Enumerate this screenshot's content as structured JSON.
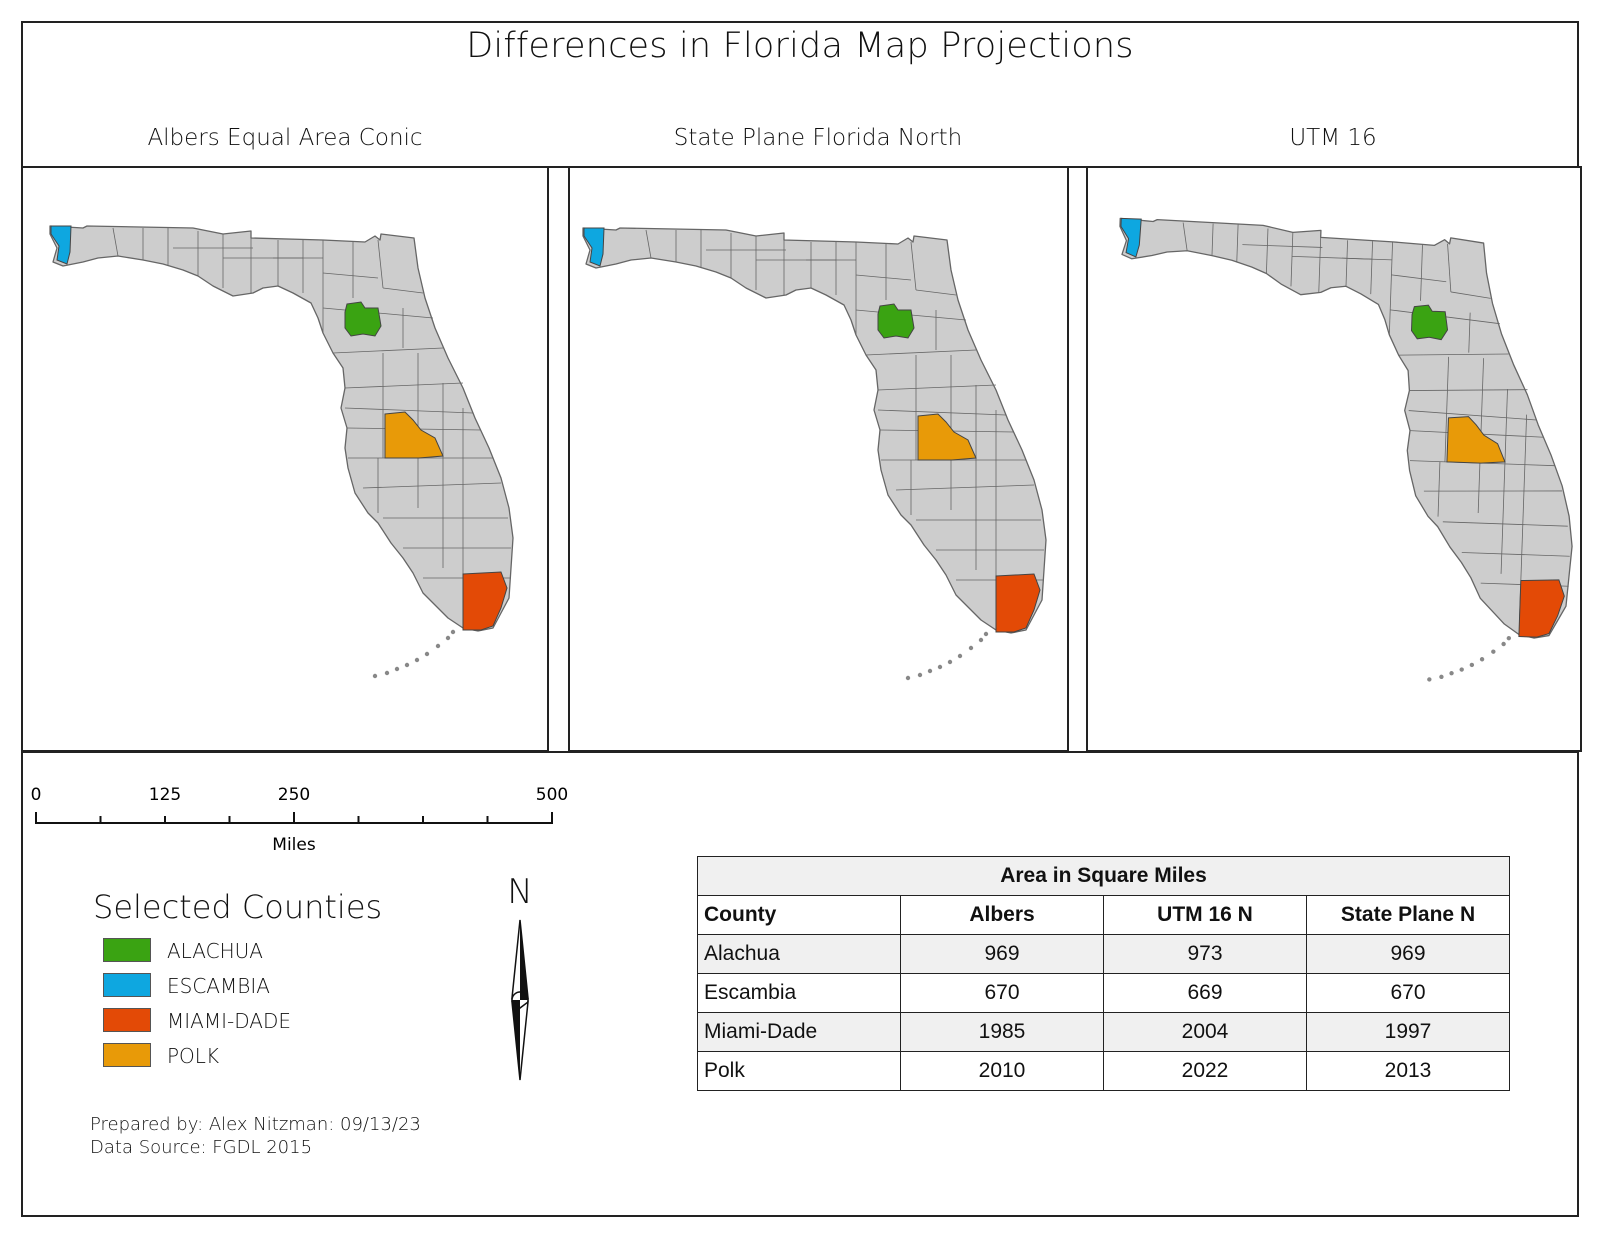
{
  "title": "Differences in Florida Map Projections",
  "maps": [
    {
      "title": "Albers Equal Area Conic"
    },
    {
      "title": "State Plane Florida North"
    },
    {
      "title": "UTM 16"
    }
  ],
  "scale_bar": {
    "labels": [
      "0",
      "125",
      "250",
      "500"
    ],
    "unit": "Miles"
  },
  "legend": {
    "title": "Selected Counties",
    "items": [
      {
        "label": "ALACHUA",
        "color": "#3aa312"
      },
      {
        "label": "ESCAMBIA",
        "color": "#0ea7e0"
      },
      {
        "label": "MIAMI-DADE",
        "color": "#e34a06"
      },
      {
        "label": "POLK",
        "color": "#e89a08"
      }
    ]
  },
  "colors": {
    "county_fill": "#cdcdcd",
    "county_line": "#666666",
    "alachua": "#3aa312",
    "escambia": "#0ea7e0",
    "miami_dade": "#e34a06",
    "polk": "#e89a08"
  },
  "north_arrow": {
    "letter": "N"
  },
  "credits": {
    "prepared": "Prepared by: Alex Nitzman: 09/13/23",
    "source": "Data Source: FGDL 2015"
  },
  "area_table": {
    "caption": "Area in Square Miles",
    "headers": [
      "County",
      "Albers",
      "UTM 16 N",
      "State Plane N"
    ],
    "rows": [
      [
        "Alachua",
        "969",
        "973",
        "969"
      ],
      [
        "Escambia",
        "670",
        "669",
        "670"
      ],
      [
        "Miami-Dade",
        "1985",
        "2004",
        "1997"
      ],
      [
        "Polk",
        "2010",
        "2022",
        "2013"
      ]
    ]
  }
}
